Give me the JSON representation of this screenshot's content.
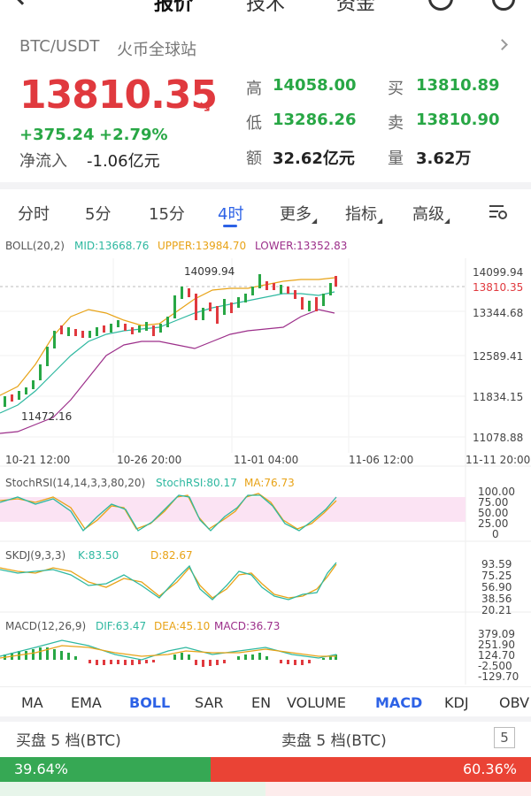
{
  "nav": {
    "tabs": [
      "报价",
      "技术",
      "资金"
    ]
  },
  "ticker": {
    "pair": "BTC/USDT",
    "exchange": "火币全球站",
    "last_price": "13810.35",
    "change_abs": "+375.24",
    "change_pct": "+2.79%",
    "inflow_label": "净流入",
    "inflow_value": "-1.06亿元",
    "high_label": "高",
    "high_value": "14058.00",
    "low_label": "低",
    "low_value": "13286.26",
    "amount_label": "额",
    "amount_value": "32.62亿元",
    "buy_label": "买",
    "buy_value": "13810.89",
    "sell_label": "卖",
    "sell_value": "13810.90",
    "volume_label": "量",
    "volume_value": "3.62万"
  },
  "intervals": {
    "items": [
      "分时",
      "5分",
      "15分",
      "4时",
      "更多",
      "指标",
      "高级"
    ],
    "active": "4时"
  },
  "chart": {
    "boll": {
      "title": "BOLL(20,2)",
      "mid": "MID:13668.76",
      "upper": "UPPER:13984.70",
      "lower": "LOWER:13352.83"
    },
    "price_axis": [
      "14099.94",
      "13810.35",
      "13344.68",
      "12589.41",
      "11834.15",
      "11078.88"
    ],
    "high_marker": "14099.94",
    "low_marker": "11472.16",
    "time_axis": [
      "10-21 12:00",
      "10-26 20:00",
      "11-01 04:00",
      "11-06 12:00",
      "11-11 20:00"
    ],
    "stochrsi": {
      "title": "StochRSI(14,14,3,3,80,20)",
      "value": "StochRSI:80.17",
      "ma": "MA:76.73",
      "axis": [
        "100.00",
        "75.00",
        "50.00",
        "25.00",
        "0"
      ]
    },
    "skdj": {
      "title": "SKDJ(9,3,3)",
      "k": "K:83.50",
      "d": "D:82.67",
      "axis": [
        "93.59",
        "75.25",
        "56.90",
        "38.56",
        "20.21"
      ]
    },
    "macd": {
      "title": "MACD(12,26,9)",
      "dif": "DIF:63.47",
      "dea": "DEA:45.10",
      "macd": "MACD:36.73",
      "axis": [
        "379.09",
        "251.90",
        "124.70",
        "-2.500",
        "-129.70"
      ]
    }
  },
  "indicators": {
    "items": [
      "MA",
      "EMA",
      "BOLL",
      "SAR",
      "EN",
      "VOLUME",
      "MACD",
      "KDJ",
      "OBV"
    ],
    "active_main": "BOLL",
    "active_sub": "MACD"
  },
  "orderbook": {
    "bid_title": "买盘 5 档(BTC)",
    "ask_title": "卖盘 5 档(BTC)",
    "depth": "5",
    "buy_pct": "39.64%",
    "sell_pct": "60.36%",
    "buy_fraction": 0.3964
  },
  "colors": {
    "up": "#28a745",
    "down": "#e0393e",
    "accent": "#2d62e6",
    "boll_mid": "#e8a317",
    "boll_upper": "#2eb8a0",
    "boll_lower": "#9c2f8a"
  },
  "icons": [
    "back-arrow-icon",
    "search-icon",
    "menu-icon",
    "chevron-right-icon",
    "down-arrow-icon",
    "chart-settings-icon"
  ]
}
